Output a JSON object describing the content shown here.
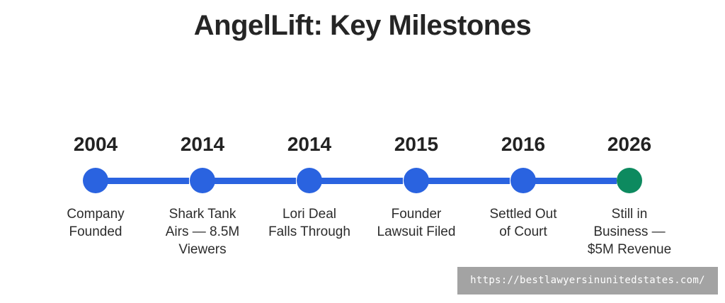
{
  "title": "AngelLift: Key Milestones",
  "colors": {
    "accent": "#2a63e0",
    "final": "#0d8a5f"
  },
  "milestones": [
    {
      "year": "2004",
      "text": "Company\nFounded",
      "color": "#2a63e0"
    },
    {
      "year": "2014",
      "text": "Shark Tank\nAirs — 8.5M\nViewers",
      "color": "#2a63e0"
    },
    {
      "year": "2014",
      "text": "Lori Deal\nFalls Through",
      "color": "#2a63e0"
    },
    {
      "year": "2015",
      "text": "Founder\nLawsuit Filed",
      "color": "#2a63e0"
    },
    {
      "year": "2016",
      "text": "Settled Out\nof Court",
      "color": "#2a63e0"
    },
    {
      "year": "2026",
      "text": "Still in\nBusiness —\n$5M Revenue",
      "color": "#0d8a5f"
    }
  ],
  "watermark": "https://bestlawyersinunitedstates.com/"
}
